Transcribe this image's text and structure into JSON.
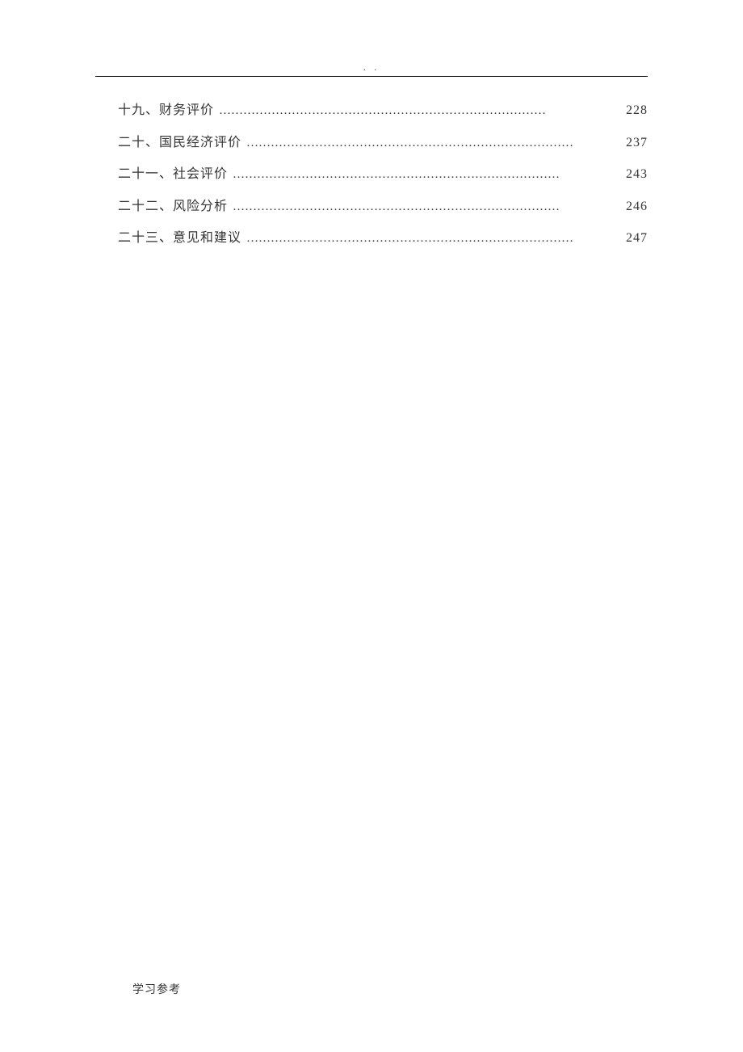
{
  "document": {
    "header_mark": ". .",
    "footer_text": "学习参考",
    "text_color": "#333333",
    "background_color": "#ffffff",
    "rule_color": "#000000",
    "body_fontsize": 16,
    "footer_fontsize": 14,
    "leader_char": "…",
    "toc": {
      "entries": [
        {
          "title": "十九、财务评价",
          "page": "228"
        },
        {
          "title": "二十、国民经济评价",
          "page": "237"
        },
        {
          "title": "二十一、社会评价",
          "page": "243"
        },
        {
          "title": "二十二、风险分析",
          "page": "246"
        },
        {
          "title": "二十三、意见和建议",
          "page": "247"
        }
      ]
    }
  }
}
